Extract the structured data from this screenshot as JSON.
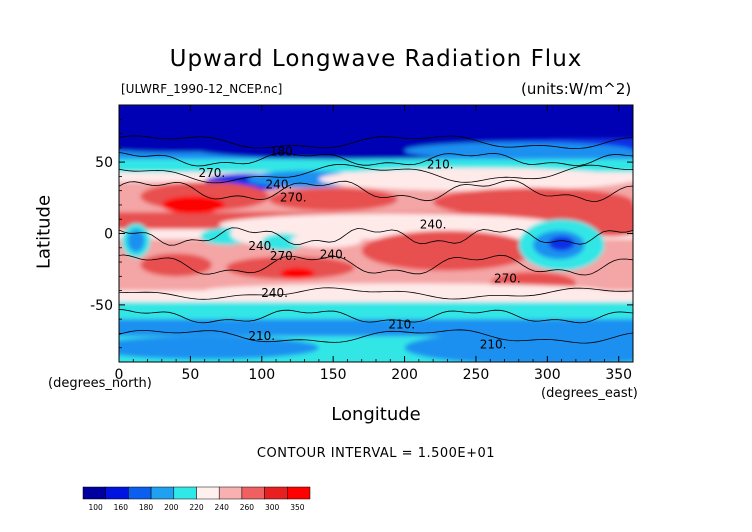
{
  "chart_data": {
    "type": "heatmap",
    "title": "Upward Longwave Radiation Flux",
    "subtitle_left": "[ULWRF_1990-12_NCEP.nc]",
    "subtitle_right": "(units:W/m^2)",
    "xlabel": "Longitude",
    "ylabel": "Latitude",
    "x_units": "(degrees_east)",
    "y_units": "(degrees_north)",
    "xlim": [
      0,
      360
    ],
    "ylim": [
      -90,
      90
    ],
    "x_ticks": [
      0,
      50,
      100,
      150,
      200,
      250,
      300,
      350
    ],
    "y_ticks": [
      -50,
      0,
      50
    ],
    "contour_interval_label": "CONTOUR INTERVAL = 1.500E+01",
    "contour_labels": [
      {
        "text": "180",
        "lon": 115,
        "lat": 57
      },
      {
        "text": "210",
        "lon": 225,
        "lat": 48
      },
      {
        "text": "270",
        "lon": 65,
        "lat": 42
      },
      {
        "text": "240",
        "lon": 112,
        "lat": 34
      },
      {
        "text": "270",
        "lon": 122,
        "lat": 25
      },
      {
        "text": "240",
        "lon": 220,
        "lat": 6
      },
      {
        "text": "240",
        "lon": 100,
        "lat": -9
      },
      {
        "text": "270",
        "lon": 115,
        "lat": -16
      },
      {
        "text": "240",
        "lon": 150,
        "lat": -15
      },
      {
        "text": "270",
        "lon": 272,
        "lat": -32
      },
      {
        "text": "240",
        "lon": 109,
        "lat": -42
      },
      {
        "text": "210",
        "lon": 100,
        "lat": -72
      },
      {
        "text": "210",
        "lon": 198,
        "lat": -64
      },
      {
        "text": "210",
        "lon": 262,
        "lat": -78
      }
    ],
    "colorbar": {
      "levels": [
        "100",
        "160",
        "180",
        "200",
        "220",
        "240",
        "260",
        "300",
        "350"
      ],
      "colors": [
        "#0000a0",
        "#0014e0",
        "#0a5ef0",
        "#20a0f0",
        "#30e8e8",
        "#fff0f0",
        "#f8b0b0",
        "#f06060",
        "#e82020",
        "#ff0000"
      ]
    },
    "field_colors": {
      "c150": "#0000b4",
      "c175": "#0a2ee6",
      "c195": "#1e90f0",
      "c212": "#32e6e6",
      "c230": "#ffeaea",
      "c250": "#f4a5a5",
      "c268": "#e85050",
      "c290": "#ff0000"
    }
  }
}
